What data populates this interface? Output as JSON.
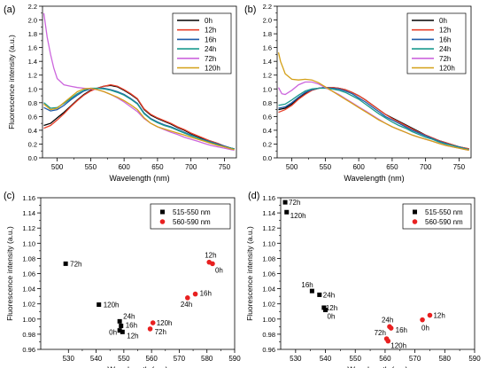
{
  "colors": {
    "0h": "#000000",
    "12h": "#e8412b",
    "16h": "#1e5aa8",
    "24h": "#1a9a8e",
    "72h": "#cc66dd",
    "120h": "#d4a017",
    "515-550 nm": "#000000",
    "560-590 nm": "#e82020"
  },
  "chart_data": [
    {
      "panel": "(a)",
      "type": "line",
      "xlabel": "Wavelength (nm)",
      "ylabel": "Fluorescence intensity (a.u.)",
      "xlim": [
        478,
        768
      ],
      "ylim": [
        0.0,
        2.2
      ],
      "xticks": [
        500,
        550,
        600,
        650,
        700,
        750
      ],
      "yticks": [
        0.0,
        0.2,
        0.4,
        0.6,
        0.8,
        1.0,
        1.2,
        1.4,
        1.6,
        1.8,
        2.0,
        2.2
      ],
      "legend": "top-right",
      "series": [
        {
          "name": "0h",
          "x": [
            480,
            490,
            500,
            510,
            520,
            530,
            540,
            550,
            560,
            570,
            580,
            590,
            600,
            610,
            620,
            630,
            640,
            650,
            660,
            670,
            680,
            690,
            700,
            710,
            720,
            730,
            740,
            750,
            760,
            765
          ],
          "y": [
            0.47,
            0.5,
            0.58,
            0.66,
            0.75,
            0.84,
            0.92,
            0.98,
            1.01,
            1.04,
            1.05,
            1.03,
            0.98,
            0.92,
            0.85,
            0.7,
            0.62,
            0.57,
            0.53,
            0.49,
            0.44,
            0.4,
            0.35,
            0.31,
            0.27,
            0.24,
            0.21,
            0.17,
            0.14,
            0.13
          ]
        },
        {
          "name": "12h",
          "x": [
            480,
            490,
            500,
            510,
            520,
            530,
            540,
            550,
            560,
            570,
            580,
            590,
            600,
            610,
            620,
            630,
            640,
            650,
            660,
            670,
            680,
            690,
            700,
            710,
            720,
            730,
            740,
            750,
            760,
            765
          ],
          "y": [
            0.43,
            0.47,
            0.55,
            0.64,
            0.74,
            0.83,
            0.91,
            0.97,
            1.01,
            1.04,
            1.06,
            1.04,
            0.99,
            0.93,
            0.86,
            0.71,
            0.63,
            0.58,
            0.54,
            0.5,
            0.45,
            0.41,
            0.36,
            0.32,
            0.28,
            0.24,
            0.21,
            0.17,
            0.14,
            0.13
          ]
        },
        {
          "name": "16h",
          "x": [
            480,
            490,
            500,
            510,
            520,
            530,
            540,
            550,
            560,
            570,
            580,
            590,
            600,
            610,
            620,
            630,
            640,
            650,
            660,
            670,
            680,
            690,
            700,
            710,
            720,
            730,
            740,
            750,
            760,
            765
          ],
          "y": [
            0.73,
            0.68,
            0.7,
            0.76,
            0.84,
            0.91,
            0.97,
            1.0,
            1.01,
            1.01,
            0.99,
            0.96,
            0.92,
            0.86,
            0.79,
            0.65,
            0.57,
            0.52,
            0.48,
            0.45,
            0.41,
            0.37,
            0.33,
            0.29,
            0.26,
            0.23,
            0.2,
            0.17,
            0.14,
            0.13
          ]
        },
        {
          "name": "24h",
          "x": [
            480,
            490,
            500,
            510,
            520,
            530,
            540,
            550,
            560,
            570,
            580,
            590,
            600,
            610,
            620,
            630,
            640,
            650,
            660,
            670,
            680,
            690,
            700,
            710,
            720,
            730,
            740,
            750,
            760,
            765
          ],
          "y": [
            0.8,
            0.72,
            0.73,
            0.79,
            0.86,
            0.93,
            0.98,
            1.01,
            1.01,
            1.0,
            0.98,
            0.95,
            0.91,
            0.85,
            0.78,
            0.64,
            0.56,
            0.51,
            0.47,
            0.44,
            0.4,
            0.36,
            0.32,
            0.29,
            0.25,
            0.22,
            0.19,
            0.16,
            0.14,
            0.13
          ]
        },
        {
          "name": "72h",
          "x": [
            480,
            485,
            490,
            495,
            500,
            510,
            520,
            530,
            540,
            550,
            560,
            570,
            580,
            590,
            600,
            610,
            620,
            630,
            640,
            650,
            660,
            670,
            680,
            690,
            700,
            710,
            720,
            730,
            740,
            750,
            760,
            765
          ],
          "y": [
            2.1,
            1.75,
            1.5,
            1.3,
            1.15,
            1.06,
            1.04,
            1.02,
            1.01,
            1.0,
            0.99,
            0.96,
            0.92,
            0.87,
            0.81,
            0.74,
            0.67,
            0.57,
            0.5,
            0.45,
            0.41,
            0.37,
            0.34,
            0.3,
            0.27,
            0.24,
            0.21,
            0.18,
            0.16,
            0.14,
            0.12,
            0.11
          ]
        },
        {
          "name": "120h",
          "x": [
            480,
            490,
            500,
            510,
            520,
            530,
            540,
            550,
            560,
            570,
            580,
            590,
            600,
            610,
            620,
            630,
            640,
            650,
            660,
            670,
            680,
            690,
            700,
            710,
            720,
            730,
            740,
            750,
            760,
            765
          ],
          "y": [
            0.78,
            0.7,
            0.72,
            0.8,
            0.88,
            0.96,
            1.0,
            1.01,
            0.99,
            0.96,
            0.92,
            0.88,
            0.83,
            0.77,
            0.7,
            0.58,
            0.5,
            0.45,
            0.42,
            0.39,
            0.36,
            0.33,
            0.3,
            0.27,
            0.24,
            0.21,
            0.18,
            0.16,
            0.13,
            0.12
          ]
        }
      ]
    },
    {
      "panel": "(b)",
      "type": "line",
      "xlabel": "Wavelength (nm)",
      "ylabel": "",
      "xlim": [
        478,
        768
      ],
      "ylim": [
        0.0,
        2.2
      ],
      "xticks": [
        500,
        550,
        600,
        650,
        700,
        750
      ],
      "yticks": [
        0.0,
        0.2,
        0.4,
        0.6,
        0.8,
        1.0,
        1.2,
        1.4,
        1.6,
        1.8,
        2.0,
        2.2
      ],
      "legend": "top-right",
      "series": [
        {
          "name": "0h",
          "x": [
            480,
            490,
            500,
            510,
            520,
            530,
            540,
            550,
            560,
            570,
            580,
            590,
            600,
            610,
            620,
            630,
            640,
            650,
            660,
            670,
            680,
            690,
            700,
            710,
            720,
            730,
            740,
            750,
            760,
            765
          ],
          "y": [
            0.7,
            0.72,
            0.78,
            0.86,
            0.93,
            0.98,
            1.01,
            1.02,
            1.02,
            1.01,
            0.99,
            0.95,
            0.9,
            0.84,
            0.77,
            0.7,
            0.63,
            0.58,
            0.53,
            0.48,
            0.43,
            0.38,
            0.33,
            0.29,
            0.25,
            0.22,
            0.19,
            0.16,
            0.14,
            0.13
          ]
        },
        {
          "name": "12h",
          "x": [
            480,
            490,
            500,
            510,
            520,
            530,
            540,
            550,
            560,
            570,
            580,
            590,
            600,
            610,
            620,
            630,
            640,
            650,
            660,
            670,
            680,
            690,
            700,
            710,
            720,
            730,
            740,
            750,
            760,
            765
          ],
          "y": [
            0.66,
            0.7,
            0.76,
            0.85,
            0.92,
            0.98,
            1.01,
            1.02,
            1.02,
            1.01,
            0.99,
            0.95,
            0.9,
            0.84,
            0.77,
            0.7,
            0.63,
            0.57,
            0.52,
            0.47,
            0.42,
            0.37,
            0.33,
            0.29,
            0.25,
            0.22,
            0.19,
            0.16,
            0.14,
            0.13
          ]
        },
        {
          "name": "16h",
          "x": [
            480,
            490,
            500,
            510,
            520,
            530,
            540,
            550,
            560,
            570,
            580,
            590,
            600,
            610,
            620,
            630,
            640,
            650,
            660,
            670,
            680,
            690,
            700,
            710,
            720,
            730,
            740,
            750,
            760,
            765
          ],
          "y": [
            0.72,
            0.74,
            0.8,
            0.88,
            0.95,
            0.99,
            1.01,
            1.02,
            1.01,
            1.0,
            0.97,
            0.93,
            0.87,
            0.81,
            0.74,
            0.67,
            0.6,
            0.55,
            0.5,
            0.45,
            0.4,
            0.36,
            0.32,
            0.28,
            0.24,
            0.21,
            0.18,
            0.16,
            0.13,
            0.12
          ]
        },
        {
          "name": "24h",
          "x": [
            480,
            490,
            500,
            510,
            520,
            530,
            540,
            550,
            560,
            570,
            580,
            590,
            600,
            610,
            620,
            630,
            640,
            650,
            660,
            670,
            680,
            690,
            700,
            710,
            720,
            730,
            740,
            750,
            760,
            765
          ],
          "y": [
            0.76,
            0.78,
            0.84,
            0.91,
            0.97,
            1.0,
            1.01,
            1.01,
            1.0,
            0.98,
            0.95,
            0.9,
            0.85,
            0.78,
            0.71,
            0.64,
            0.58,
            0.52,
            0.47,
            0.43,
            0.38,
            0.34,
            0.3,
            0.27,
            0.23,
            0.2,
            0.18,
            0.15,
            0.13,
            0.12
          ]
        },
        {
          "name": "72h",
          "x": [
            480,
            485,
            490,
            500,
            510,
            520,
            530,
            540,
            550,
            560,
            570,
            580,
            590,
            600,
            610,
            620,
            630,
            640,
            650,
            660,
            670,
            680,
            690,
            700,
            710,
            720,
            730,
            740,
            750,
            760,
            765
          ],
          "y": [
            1.02,
            0.93,
            0.92,
            0.98,
            1.06,
            1.1,
            1.1,
            1.07,
            1.02,
            0.97,
            0.92,
            0.86,
            0.8,
            0.74,
            0.68,
            0.62,
            0.56,
            0.5,
            0.45,
            0.41,
            0.37,
            0.33,
            0.3,
            0.27,
            0.24,
            0.21,
            0.18,
            0.16,
            0.14,
            0.12,
            0.11
          ]
        },
        {
          "name": "120h",
          "x": [
            480,
            483,
            487,
            490,
            500,
            510,
            520,
            530,
            540,
            550,
            560,
            570,
            580,
            590,
            600,
            610,
            620,
            630,
            640,
            650,
            660,
            670,
            680,
            690,
            700,
            710,
            720,
            730,
            740,
            750,
            760,
            765
          ],
          "y": [
            1.53,
            1.4,
            1.3,
            1.22,
            1.14,
            1.13,
            1.14,
            1.13,
            1.09,
            1.03,
            0.97,
            0.91,
            0.85,
            0.79,
            0.73,
            0.67,
            0.61,
            0.55,
            0.5,
            0.45,
            0.41,
            0.37,
            0.33,
            0.3,
            0.27,
            0.24,
            0.21,
            0.18,
            0.16,
            0.14,
            0.12,
            0.11
          ]
        }
      ]
    },
    {
      "panel": "(c)",
      "type": "scatter",
      "xlabel": "Wavelength (nm)",
      "ylabel": "Fluorescence intensity (a.u.)",
      "xlim": [
        520,
        590
      ],
      "ylim": [
        0.96,
        1.16
      ],
      "xticks": [
        530,
        540,
        550,
        560,
        570,
        580,
        590
      ],
      "yticks": [
        0.96,
        0.98,
        1.0,
        1.02,
        1.04,
        1.06,
        1.08,
        1.1,
        1.12,
        1.14,
        1.16
      ],
      "legend": "top-right",
      "series": [
        {
          "name": "515-550 nm",
          "marker": "square",
          "points": [
            {
              "label": "72h",
              "x": 529.0,
              "y": 1.073
            },
            {
              "label": "120h",
              "x": 541.0,
              "y": 1.019
            },
            {
              "label": "24h",
              "x": 548.5,
              "y": 0.997
            },
            {
              "label": "16h",
              "x": 549.0,
              "y": 0.991
            },
            {
              "label": "0h",
              "x": 548.5,
              "y": 0.985
            },
            {
              "label": "12h",
              "x": 549.5,
              "y": 0.983
            }
          ]
        },
        {
          "name": "560-590 nm",
          "marker": "circle",
          "points": [
            {
              "label": "12h",
              "x": 580.8,
              "y": 1.075
            },
            {
              "label": "0h",
              "x": 582.0,
              "y": 1.073
            },
            {
              "label": "16h",
              "x": 575.8,
              "y": 1.033
            },
            {
              "label": "24h",
              "x": 573.0,
              "y": 1.028
            },
            {
              "label": "120h",
              "x": 560.5,
              "y": 0.995
            },
            {
              "label": "72h",
              "x": 559.5,
              "y": 0.987
            }
          ]
        }
      ]
    },
    {
      "panel": "(d)",
      "type": "scatter",
      "xlabel": "Wavelength (nm)",
      "ylabel": "Fluorescence intensity (a.u.)",
      "xlim": [
        525,
        590
      ],
      "ylim": [
        0.96,
        1.16
      ],
      "xticks": [
        530,
        540,
        550,
        560,
        570,
        580,
        590
      ],
      "yticks": [
        0.96,
        0.98,
        1.0,
        1.02,
        1.04,
        1.06,
        1.08,
        1.1,
        1.12,
        1.14,
        1.16
      ],
      "legend": "top-right",
      "series": [
        {
          "name": "515-550 nm",
          "marker": "square",
          "points": [
            {
              "label": "72h",
              "x": 526.5,
              "y": 1.154
            },
            {
              "label": "120h",
              "x": 527.0,
              "y": 1.141
            },
            {
              "label": "16h",
              "x": 535.5,
              "y": 1.037
            },
            {
              "label": "24h",
              "x": 538.0,
              "y": 1.032
            },
            {
              "label": "12h",
              "x": 539.5,
              "y": 1.015
            },
            {
              "label": "0h",
              "x": 540.0,
              "y": 1.012
            }
          ]
        },
        {
          "name": "560-590 nm",
          "marker": "circle",
          "points": [
            {
              "label": "24h",
              "x": 561.5,
              "y": 0.99
            },
            {
              "label": "16h",
              "x": 562.0,
              "y": 0.988
            },
            {
              "label": "72h",
              "x": 560.5,
              "y": 0.974
            },
            {
              "label": "120h",
              "x": 561.0,
              "y": 0.971
            },
            {
              "label": "12h",
              "x": 575.0,
              "y": 1.005
            },
            {
              "label": "0h",
              "x": 572.5,
              "y": 0.999
            }
          ]
        }
      ]
    }
  ]
}
